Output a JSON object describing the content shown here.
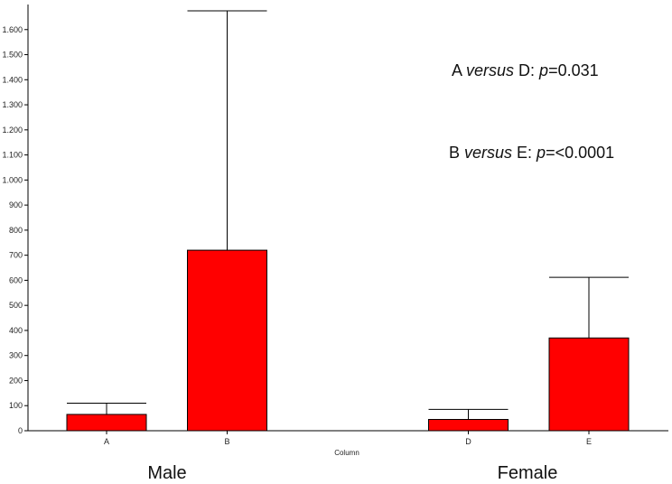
{
  "chart_data": {
    "type": "bar",
    "categories": [
      "A",
      "B",
      "D",
      "E"
    ],
    "slots": [
      0,
      1,
      3,
      4
    ],
    "values": [
      65,
      720,
      45,
      370
    ],
    "error_upper": [
      110,
      1675,
      85,
      612
    ],
    "ylim": [
      0,
      1700
    ],
    "yticks": [
      0,
      100,
      200,
      300,
      400,
      500,
      600,
      700,
      800,
      900,
      1000,
      1100,
      1200,
      1300,
      1400,
      1500,
      1600
    ],
    "ytick_labels": [
      "0",
      "100",
      "200",
      "300",
      "400",
      "500",
      "600",
      "700",
      "800",
      "900",
      "1.000",
      "1.100",
      "1.200",
      "1.300",
      "1.400",
      "1.500",
      "1.600"
    ],
    "xlabel": "Column",
    "ylabel": "",
    "title": "",
    "bar_color": "#ff0000",
    "groups": [
      {
        "label": "Male"
      },
      {
        "label": "Female"
      }
    ],
    "annotations": [
      {
        "parts": [
          {
            "text": "A ",
            "italic": false
          },
          {
            "text": "versus",
            "italic": true
          },
          {
            "text": " D: ",
            "italic": false
          },
          {
            "text": "p",
            "italic": true
          },
          {
            "text": "=0.031",
            "italic": false
          }
        ]
      },
      {
        "parts": [
          {
            "text": "B ",
            "italic": false
          },
          {
            "text": "versus",
            "italic": true
          },
          {
            "text": " E: ",
            "italic": false
          },
          {
            "text": "p",
            "italic": true
          },
          {
            "text": "=<0.0001",
            "italic": false
          }
        ]
      }
    ]
  }
}
